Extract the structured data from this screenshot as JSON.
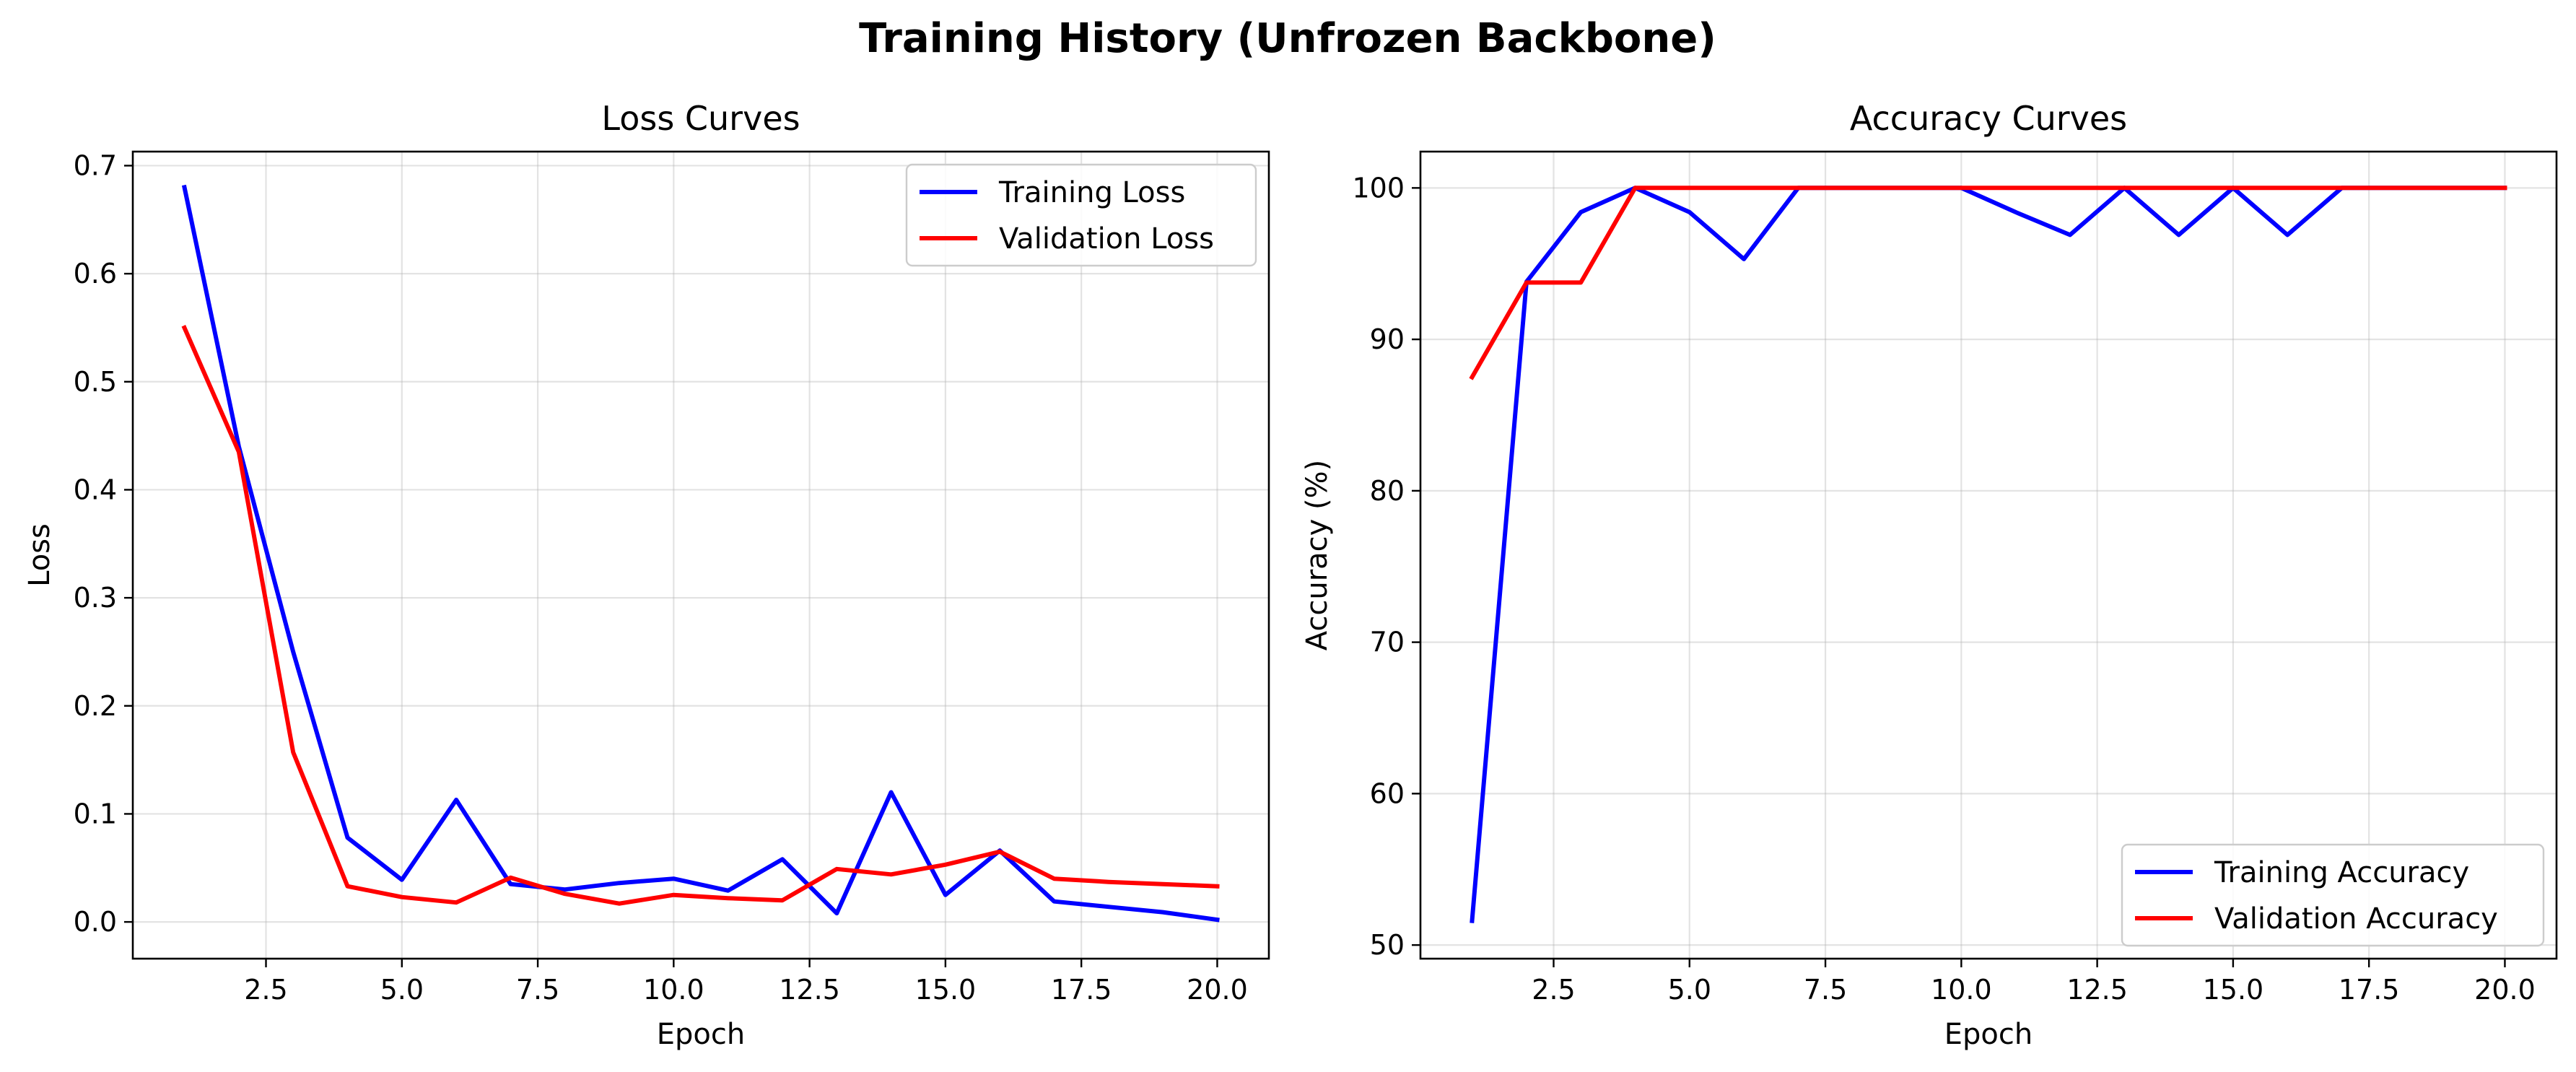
{
  "figure": {
    "suptitle": "Training History (Unfrozen Backbone)"
  },
  "chart_data": [
    {
      "type": "line",
      "title": "Loss Curves",
      "xlabel": "Epoch",
      "ylabel": "Loss",
      "xlim": [
        0.05,
        20.95
      ],
      "ylim": [
        -0.034,
        0.713
      ],
      "xticks": [
        2.5,
        5.0,
        7.5,
        10.0,
        12.5,
        15.0,
        17.5,
        20.0
      ],
      "xtick_labels": [
        "2.5",
        "5.0",
        "7.5",
        "10.0",
        "12.5",
        "15.0",
        "17.5",
        "20.0"
      ],
      "yticks": [
        0.0,
        0.1,
        0.2,
        0.3,
        0.4,
        0.5,
        0.6,
        0.7
      ],
      "ytick_labels": [
        "0.0",
        "0.1",
        "0.2",
        "0.3",
        "0.4",
        "0.5",
        "0.6",
        "0.7"
      ],
      "grid": true,
      "legend_position": "upper right",
      "x": [
        1,
        2,
        3,
        4,
        5,
        6,
        7,
        8,
        9,
        10,
        11,
        12,
        13,
        14,
        15,
        16,
        17,
        18,
        19,
        20
      ],
      "series": [
        {
          "name": "Training Loss",
          "color": "#0000ff",
          "values": [
            0.68,
            0.44,
            0.25,
            0.078,
            0.039,
            0.113,
            0.035,
            0.03,
            0.036,
            0.04,
            0.029,
            0.058,
            0.008,
            0.12,
            0.025,
            0.066,
            0.019,
            0.014,
            0.009,
            0.002
          ]
        },
        {
          "name": "Validation Loss",
          "color": "#ff0000",
          "values": [
            0.55,
            0.435,
            0.157,
            0.033,
            0.023,
            0.018,
            0.041,
            0.026,
            0.017,
            0.025,
            0.022,
            0.02,
            0.049,
            0.044,
            0.053,
            0.065,
            0.04,
            0.037,
            0.035,
            0.033
          ]
        }
      ]
    },
    {
      "type": "line",
      "title": "Accuracy Curves",
      "xlabel": "Epoch",
      "ylabel": "Accuracy (%)",
      "xlim": [
        0.05,
        20.95
      ],
      "ylim": [
        49.1,
        102.4
      ],
      "xticks": [
        2.5,
        5.0,
        7.5,
        10.0,
        12.5,
        15.0,
        17.5,
        20.0
      ],
      "xtick_labels": [
        "2.5",
        "5.0",
        "7.5",
        "10.0",
        "12.5",
        "15.0",
        "17.5",
        "20.0"
      ],
      "yticks": [
        50,
        60,
        70,
        80,
        90,
        100
      ],
      "ytick_labels": [
        "50",
        "60",
        "70",
        "80",
        "90",
        "100"
      ],
      "grid": true,
      "legend_position": "lower right",
      "x": [
        1,
        2,
        3,
        4,
        5,
        6,
        7,
        8,
        9,
        10,
        11,
        12,
        13,
        14,
        15,
        16,
        17,
        18,
        19,
        20
      ],
      "series": [
        {
          "name": "Training Accuracy",
          "color": "#0000ff",
          "values": [
            51.6,
            93.8,
            98.4,
            100,
            98.4,
            95.3,
            100,
            100,
            100,
            100,
            98.4,
            96.9,
            100,
            96.9,
            100,
            96.9,
            100,
            100,
            100,
            100
          ]
        },
        {
          "name": "Validation Accuracy",
          "color": "#ff0000",
          "values": [
            87.5,
            93.75,
            93.75,
            100,
            100,
            100,
            100,
            100,
            100,
            100,
            100,
            100,
            100,
            100,
            100,
            100,
            100,
            100,
            100,
            100
          ]
        }
      ]
    }
  ]
}
